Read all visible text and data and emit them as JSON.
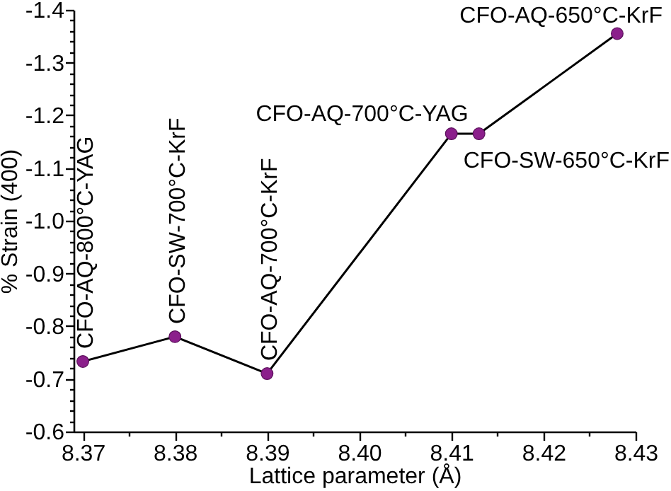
{
  "chart_data": {
    "type": "line",
    "xlabel": "Lattice parameter (Å)",
    "ylabel": "% Strain (400)",
    "x": [
      8.37,
      8.38,
      8.39,
      8.41,
      8.413,
      8.428
    ],
    "series": [
      {
        "color": "#8b1f8b",
        "values": [
          -0.733,
          -0.78,
          -0.71,
          -1.165,
          -1.165,
          -1.355
        ]
      }
    ],
    "xlim": [
      8.369,
      8.43
    ],
    "ylim": [
      -0.6,
      -1.4
    ],
    "xticks": [
      8.37,
      {
        "value": 8.375,
        "label": null
      },
      8.38,
      {
        "value": 8.385,
        "label": null
      },
      8.39,
      {
        "value": 8.395,
        "label": null
      },
      {
        "value": 8.4,
        "label": "8.40"
      },
      {
        "value": 8.405,
        "label": null
      },
      8.41,
      {
        "value": 8.415,
        "label": null
      },
      8.42,
      {
        "value": 8.425,
        "label": null
      },
      8.43
    ],
    "yticks": [
      -1.4,
      {
        "value": -1.38,
        "label": null
      },
      {
        "value": -1.36,
        "label": null
      },
      {
        "value": -1.34,
        "label": null
      },
      {
        "value": -1.32,
        "label": null
      },
      -1.3,
      {
        "value": -1.28,
        "label": null
      },
      {
        "value": -1.26,
        "label": null
      },
      {
        "value": -1.24,
        "label": null
      },
      {
        "value": -1.22,
        "label": null
      },
      -1.2,
      {
        "value": -1.18,
        "label": null
      },
      {
        "value": -1.16,
        "label": null
      },
      {
        "value": -1.14,
        "label": null
      },
      {
        "value": -1.12,
        "label": null
      },
      -1.1,
      {
        "value": -1.08,
        "label": null
      },
      {
        "value": -1.06,
        "label": null
      },
      {
        "value": -1.04,
        "label": null
      },
      {
        "value": -1.02,
        "label": null
      },
      {
        "value": -1,
        "label": "-1.0"
      },
      {
        "value": -0.98,
        "label": null
      },
      {
        "value": -0.96,
        "label": null
      },
      {
        "value": -0.94,
        "label": null
      },
      {
        "value": -0.92,
        "label": null
      },
      -0.9,
      {
        "value": -0.88,
        "label": null
      },
      {
        "value": -0.86,
        "label": null
      },
      {
        "value": -0.84,
        "label": null
      },
      {
        "value": -0.82,
        "label": null
      },
      -0.8,
      {
        "value": -0.78,
        "label": null
      },
      {
        "value": -0.76,
        "label": null
      },
      {
        "value": -0.74,
        "label": null
      },
      {
        "value": -0.72,
        "label": null
      },
      -0.7,
      {
        "value": -0.68,
        "label": null
      },
      {
        "value": -0.66,
        "label": null
      },
      {
        "value": -0.64,
        "label": null
      },
      {
        "value": -0.62,
        "label": null
      },
      -0.6
    ],
    "grid": false,
    "marker": "circle",
    "annotations": [
      {
        "text": "CFO-AQ-800°C-YAG",
        "x": 8.37,
        "y": -0.733
      },
      {
        "text": "CFO-SW-700°C-KrF",
        "x": 8.38,
        "y": -0.78
      },
      {
        "text": "CFO-AQ-700°C-KrF",
        "x": 8.39,
        "y": -0.71
      },
      {
        "text": "CFO-AQ-700°C-YAG",
        "x": 8.41,
        "y": -1.165
      },
      {
        "text": "CFO-SW-650°C-KrF",
        "x": 8.413,
        "y": -1.165
      },
      {
        "text": "CFO-AQ-650°C-KrF",
        "x": 8.428,
        "y": -1.355
      }
    ]
  }
}
